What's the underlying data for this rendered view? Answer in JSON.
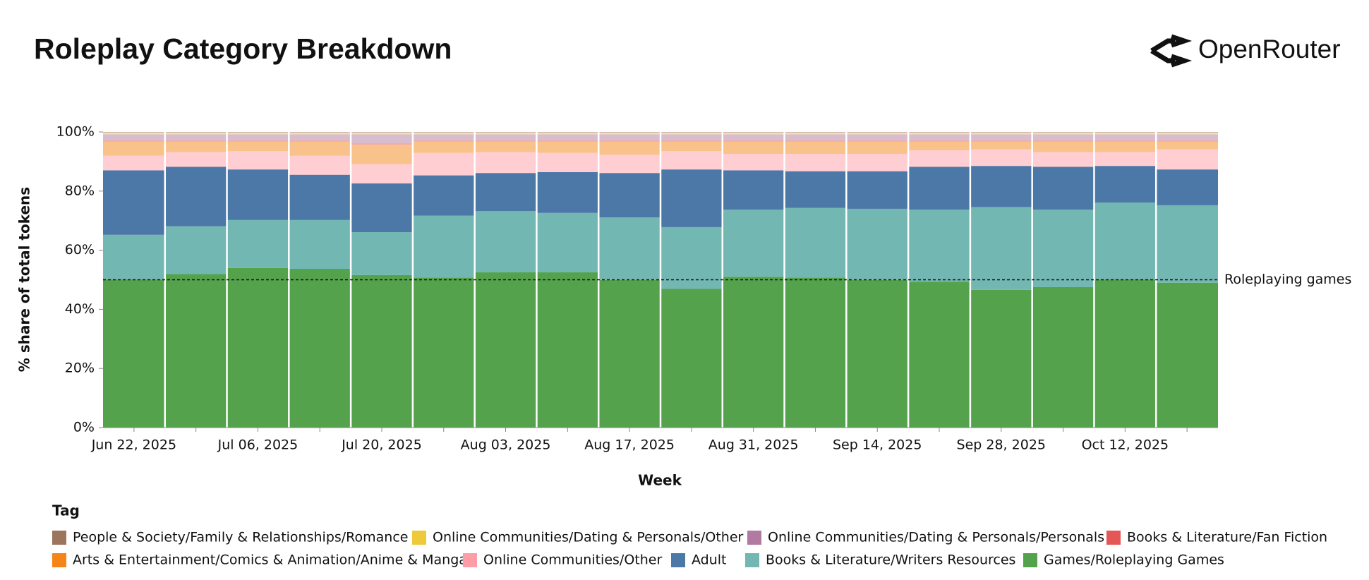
{
  "brand": "OpenRouter",
  "chart_data": {
    "type": "stacked_bar",
    "title": "Roleplay Category Breakdown",
    "x_label": "Week",
    "y_label": "% share of total tokens",
    "legend_title": "Tag",
    "categories": [
      "Jun 22, 2025",
      null,
      "Jul 06, 2025",
      null,
      "Jul 20, 2025",
      null,
      "Aug 03, 2025",
      null,
      "Aug 17, 2025",
      null,
      "Aug 31, 2025",
      null,
      "Sep 14, 2025",
      null,
      "Sep 28, 2025",
      null,
      "Oct 12, 2025",
      null
    ],
    "ylim": [
      0,
      100
    ],
    "yticks": [
      {
        "value": 0,
        "label": "0%"
      },
      {
        "value": 20,
        "label": "20%"
      },
      {
        "value": 40,
        "label": "40%"
      },
      {
        "value": 60,
        "label": "60%"
      },
      {
        "value": 80,
        "label": "80%"
      },
      {
        "value": 100,
        "label": "100%"
      }
    ],
    "reference_line": {
      "value": 50,
      "label": "Roleplaying games"
    },
    "series": [
      {
        "name": "People & Society/Family & Relationships/Romance",
        "color": "#9d755d",
        "opacity": 0.5,
        "values": [
          0.3,
          0.3,
          0.3,
          0.3,
          0.3,
          0.3,
          0.3,
          0.3,
          0.3,
          0.3,
          0.3,
          0.3,
          0.3,
          0.3,
          0.3,
          0.3,
          0.3,
          0.3
        ]
      },
      {
        "name": "Online Communities/Dating & Personals/Other",
        "color": "#eeca3b",
        "opacity": 0.5,
        "values": [
          0.5,
          0.5,
          0.5,
          0.5,
          0.5,
          0.5,
          0.5,
          0.5,
          0.5,
          0.5,
          0.5,
          0.5,
          0.5,
          0.5,
          0.5,
          0.5,
          0.5,
          0.5
        ]
      },
      {
        "name": "Online Communities/Dating & Personals/Personals",
        "color": "#b279a2",
        "opacity": 0.5,
        "values": [
          2,
          2,
          2,
          2,
          3,
          2,
          2,
          2,
          2,
          2,
          2,
          2,
          2,
          2,
          2,
          2,
          2,
          2
        ]
      },
      {
        "name": "Books & Literature/Fan Fiction",
        "color": "#e45756",
        "opacity": 0.5,
        "values": [
          0.5,
          0.5,
          0.5,
          0.5,
          0.5,
          0.5,
          0.5,
          0.5,
          0.5,
          0.5,
          0.5,
          0.5,
          0.5,
          0.5,
          0.5,
          0.5,
          0.5,
          0.5
        ]
      },
      {
        "name": "Arts & Entertainment/Comics & Animation/Anime & Manga",
        "color": "#f58518",
        "opacity": 0.5,
        "values": [
          4.7,
          3.5,
          3.2,
          4.7,
          6.6,
          3.8,
          3.5,
          3.8,
          4.4,
          3.2,
          4.1,
          4.1,
          4.1,
          2.9,
          2.6,
          3.5,
          3.5,
          2.6
        ]
      },
      {
        "name": "Online Communities/Other",
        "color": "#ff9da6",
        "opacity": 0.5,
        "values": [
          5,
          5,
          6.2,
          6.5,
          6.5,
          7.6,
          7.1,
          6.5,
          6.2,
          6.2,
          5.6,
          5.9,
          5.9,
          5.6,
          5.6,
          5,
          4.7,
          6.8
        ]
      },
      {
        "name": "Adult",
        "color": "#4c78a8",
        "opacity": 1,
        "values": [
          21.8,
          20.1,
          17.1,
          15.3,
          16.5,
          13.6,
          12.9,
          13.8,
          15,
          19.5,
          13.3,
          12.4,
          12.7,
          14.5,
          13.9,
          14.5,
          12.4,
          12.1
        ]
      },
      {
        "name": "Books & Literature/Writers Resources",
        "color": "#72b7b2",
        "opacity": 1,
        "values": [
          15.1,
          16.2,
          16.2,
          16.5,
          14.5,
          21,
          20.7,
          20.1,
          21.2,
          20.9,
          22.7,
          23.6,
          24.1,
          24.4,
          28,
          26.2,
          26,
          26.2
        ]
      },
      {
        "name": "Games/Roleplaying Games",
        "color": "#54a24b",
        "opacity": 1,
        "values": [
          50.1,
          51.9,
          54,
          53.7,
          51.6,
          50.7,
          52.5,
          52.5,
          49.9,
          46.9,
          51,
          50.7,
          49.9,
          49.3,
          46.6,
          47.5,
          50.1,
          49
        ]
      }
    ]
  }
}
